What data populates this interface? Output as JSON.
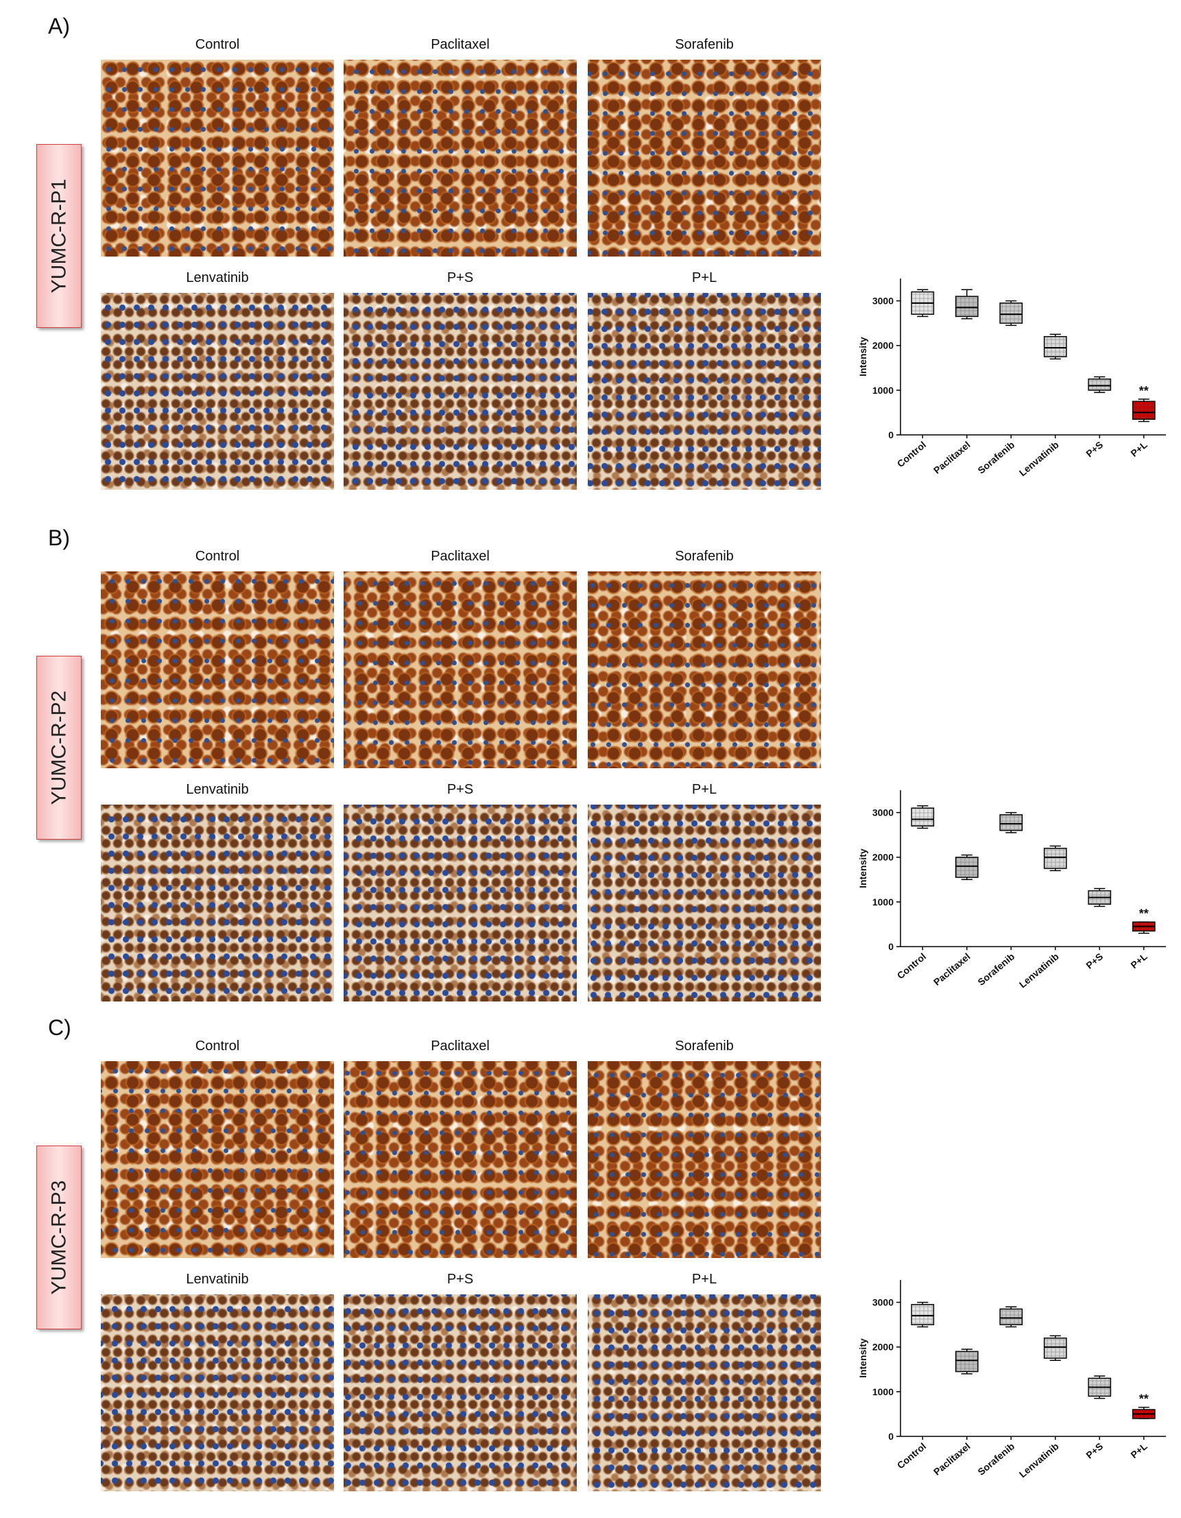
{
  "panels": [
    {
      "label": "A)",
      "cell_line": "YUMC-R-P1",
      "images": [
        "Control",
        "Paclitaxel",
        "Sorafenib",
        "Lenvatinib",
        "P+S",
        "P+L"
      ]
    },
    {
      "label": "B)",
      "cell_line": "YUMC-R-P2",
      "images": [
        "Control",
        "Paclitaxel",
        "Sorafenib",
        "Lenvatinib",
        "P+S",
        "P+L"
      ]
    },
    {
      "label": "C)",
      "cell_line": "YUMC-R-P3",
      "images": [
        "Control",
        "Paclitaxel",
        "Sorafenib",
        "Lenvatinib",
        "P+S",
        "P+L"
      ]
    }
  ],
  "chart_data": [
    {
      "type": "box",
      "ylabel": "Intensity",
      "categories": [
        "Control",
        "Paclitaxel",
        "Sorafenib",
        "Lenvatinib",
        "P+S",
        "P+L"
      ],
      "boxes": [
        {
          "min": 2650,
          "q1": 2700,
          "median": 2950,
          "q3": 3200,
          "max": 3250
        },
        {
          "min": 2600,
          "q1": 2650,
          "median": 2850,
          "q3": 3100,
          "max": 3250
        },
        {
          "min": 2450,
          "q1": 2500,
          "median": 2700,
          "q3": 2950,
          "max": 3000
        },
        {
          "min": 1700,
          "q1": 1750,
          "median": 1950,
          "q3": 2200,
          "max": 2250
        },
        {
          "min": 950,
          "q1": 1000,
          "median": 1100,
          "q3": 1250,
          "max": 1300
        },
        {
          "min": 300,
          "q1": 350,
          "median": 500,
          "q3": 750,
          "max": 800,
          "annotation": "**"
        }
      ],
      "colors": [
        "#e6e6e6",
        "#bdbdbd",
        "#c8c8c8",
        "#d9d9d9",
        "#d0d0d0",
        "#cc0000"
      ],
      "annotation_color": "#ff2020",
      "ylim": [
        0,
        3500
      ],
      "yticks": [
        0,
        1000,
        2000,
        3000
      ]
    },
    {
      "type": "box",
      "ylabel": "Intensity",
      "categories": [
        "Control",
        "Paclitaxel",
        "Sorafenib",
        "Lenvatinib",
        "P+S",
        "P+L"
      ],
      "boxes": [
        {
          "min": 2650,
          "q1": 2700,
          "median": 2850,
          "q3": 3100,
          "max": 3150
        },
        {
          "min": 1500,
          "q1": 1550,
          "median": 1800,
          "q3": 2000,
          "max": 2050
        },
        {
          "min": 2550,
          "q1": 2600,
          "median": 2750,
          "q3": 2950,
          "max": 3000
        },
        {
          "min": 1700,
          "q1": 1750,
          "median": 2000,
          "q3": 2200,
          "max": 2250
        },
        {
          "min": 900,
          "q1": 950,
          "median": 1100,
          "q3": 1250,
          "max": 1300
        },
        {
          "min": 300,
          "q1": 350,
          "median": 450,
          "q3": 550,
          "max": 550,
          "annotation": "**"
        }
      ],
      "colors": [
        "#e6e6e6",
        "#bdbdbd",
        "#c8c8c8",
        "#d9d9d9",
        "#d0d0d0",
        "#cc0000"
      ],
      "annotation_color": "#ff2020",
      "ylim": [
        0,
        3500
      ],
      "yticks": [
        0,
        1000,
        2000,
        3000
      ]
    },
    {
      "type": "box",
      "ylabel": "Intensity",
      "categories": [
        "Control",
        "Paclitaxel",
        "Sorafenib",
        "Lenvatinib",
        "P+S",
        "P+L"
      ],
      "boxes": [
        {
          "min": 2450,
          "q1": 2500,
          "median": 2700,
          "q3": 2950,
          "max": 3000
        },
        {
          "min": 1400,
          "q1": 1450,
          "median": 1700,
          "q3": 1900,
          "max": 1950
        },
        {
          "min": 2450,
          "q1": 2500,
          "median": 2650,
          "q3": 2850,
          "max": 2900
        },
        {
          "min": 1700,
          "q1": 1750,
          "median": 2000,
          "q3": 2200,
          "max": 2250
        },
        {
          "min": 850,
          "q1": 900,
          "median": 1100,
          "q3": 1300,
          "max": 1350
        },
        {
          "min": 400,
          "q1": 400,
          "median": 500,
          "q3": 600,
          "max": 650,
          "annotation": "**"
        }
      ],
      "colors": [
        "#e6e6e6",
        "#bdbdbd",
        "#c8c8c8",
        "#d9d9d9",
        "#d0d0d0",
        "#cc0000"
      ],
      "annotation_color": "#ff2020",
      "ylim": [
        0,
        3500
      ],
      "yticks": [
        0,
        1000,
        2000,
        3000
      ]
    }
  ]
}
